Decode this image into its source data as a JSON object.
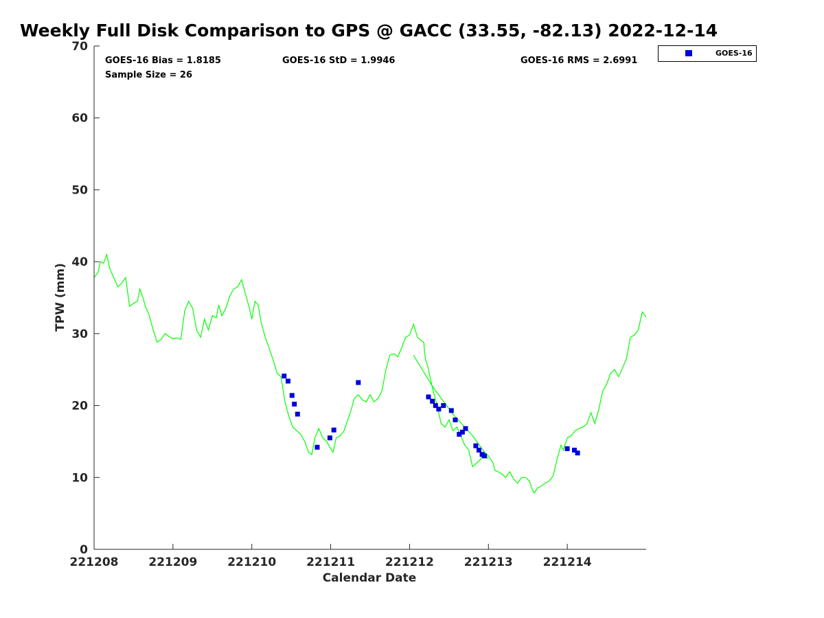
{
  "title": "Weekly Full Disk Comparison to GPS @ GACC (33.55, -82.13) 2022-12-14",
  "stats": {
    "bias": "GOES-16 Bias = 1.8185",
    "std": "GOES-16 StD = 1.9946",
    "rms": "GOES-16 RMS = 2.6991",
    "sample": "Sample Size = 26"
  },
  "legend": {
    "label": "GOES-16",
    "placement": "top-right, outside plot"
  },
  "chart_data": {
    "type": "scatter",
    "title": "Weekly Full Disk Comparison to GPS @ GACC (33.55, -82.13) 2022-12-14",
    "xlabel": "Calendar Date",
    "ylabel": "TPW (mm)",
    "xlim": [
      0,
      7
    ],
    "ylim": [
      0,
      70
    ],
    "x_ticks": [
      0,
      1,
      2,
      3,
      4,
      5,
      6
    ],
    "x_tick_labels": [
      "221208",
      "221209",
      "221210",
      "221211",
      "221212",
      "221213",
      "221214"
    ],
    "y_ticks": [
      0,
      10,
      20,
      30,
      40,
      50,
      60,
      70
    ],
    "y_tick_labels": [
      "0",
      "10",
      "20",
      "30",
      "40",
      "50",
      "60",
      "70"
    ],
    "grid": false,
    "colors": {
      "gps_line": "#00ff00",
      "goes16": "#0000dd"
    },
    "series": [
      {
        "kind": "line",
        "color": "#00ff00",
        "points": [
          [
            0.0,
            37.8
          ],
          [
            0.05,
            38.5
          ],
          [
            0.08,
            40.0
          ],
          [
            0.12,
            39.8
          ],
          [
            0.16,
            41.0
          ],
          [
            0.2,
            39.0
          ],
          [
            0.25,
            37.8
          ],
          [
            0.3,
            36.5
          ],
          [
            0.35,
            37.0
          ],
          [
            0.4,
            37.8
          ],
          [
            0.45,
            33.8
          ],
          [
            0.5,
            34.2
          ],
          [
            0.55,
            34.5
          ],
          [
            0.58,
            36.2
          ],
          [
            0.62,
            35.0
          ],
          [
            0.65,
            33.8
          ],
          [
            0.7,
            32.5
          ],
          [
            0.75,
            30.5
          ],
          [
            0.8,
            28.8
          ],
          [
            0.85,
            29.2
          ],
          [
            0.9,
            30.0
          ],
          [
            0.95,
            29.6
          ],
          [
            1.0,
            29.3
          ],
          [
            1.05,
            29.4
          ],
          [
            1.1,
            29.2
          ],
          [
            1.15,
            33.2
          ],
          [
            1.2,
            34.5
          ],
          [
            1.25,
            33.5
          ],
          [
            1.3,
            30.5
          ],
          [
            1.35,
            29.5
          ],
          [
            1.4,
            32.0
          ],
          [
            1.45,
            30.5
          ],
          [
            1.5,
            32.5
          ],
          [
            1.55,
            32.2
          ],
          [
            1.58,
            34.0
          ],
          [
            1.62,
            32.5
          ],
          [
            1.67,
            33.5
          ],
          [
            1.72,
            35.2
          ],
          [
            1.77,
            36.2
          ],
          [
            1.82,
            36.5
          ],
          [
            1.87,
            37.5
          ],
          [
            1.92,
            35.5
          ],
          [
            1.97,
            33.5
          ],
          [
            2.0,
            32.0
          ],
          [
            2.04,
            34.5
          ],
          [
            2.08,
            34.0
          ],
          [
            2.12,
            31.5
          ],
          [
            2.17,
            29.5
          ],
          [
            2.22,
            28.0
          ],
          [
            2.28,
            26.0
          ],
          [
            2.32,
            24.5
          ],
          [
            2.37,
            24.0
          ],
          [
            2.42,
            20.5
          ],
          [
            2.47,
            18.5
          ],
          [
            2.52,
            17.0
          ],
          [
            2.57,
            16.5
          ],
          [
            2.62,
            16.0
          ],
          [
            2.67,
            15.0
          ],
          [
            2.72,
            13.5
          ],
          [
            2.76,
            13.2
          ],
          [
            2.8,
            15.5
          ],
          [
            2.85,
            16.8
          ],
          [
            2.9,
            15.5
          ],
          [
            2.95,
            15.0
          ],
          [
            3.0,
            14.0
          ],
          [
            3.03,
            13.5
          ],
          [
            3.07,
            15.5
          ],
          [
            3.12,
            15.8
          ],
          [
            3.17,
            16.5
          ],
          [
            3.2,
            17.5
          ],
          [
            3.25,
            19.0
          ],
          [
            3.3,
            21.0
          ],
          [
            3.35,
            21.5
          ],
          [
            3.4,
            20.8
          ],
          [
            3.45,
            20.5
          ],
          [
            3.5,
            21.5
          ],
          [
            3.55,
            20.5
          ],
          [
            3.6,
            21.0
          ],
          [
            3.65,
            22.0
          ],
          [
            3.7,
            25.0
          ],
          [
            3.75,
            27.0
          ],
          [
            3.8,
            27.2
          ],
          [
            3.85,
            26.8
          ],
          [
            3.9,
            28.0
          ],
          [
            3.95,
            29.5
          ],
          [
            4.0,
            29.8
          ],
          [
            4.05,
            31.3
          ],
          [
            4.1,
            29.5
          ],
          [
            4.15,
            29.0
          ],
          [
            4.18,
            28.8
          ],
          [
            4.2,
            26.5
          ],
          [
            4.23,
            25.5
          ],
          [
            4.27,
            23.5
          ],
          [
            4.3,
            22.0
          ],
          [
            4.35,
            20.0
          ],
          [
            4.4,
            17.5
          ],
          [
            4.45,
            17.0
          ],
          [
            4.5,
            18.0
          ],
          [
            4.55,
            16.5
          ],
          [
            4.6,
            17.0
          ],
          [
            4.65,
            15.8
          ],
          [
            4.7,
            14.5
          ],
          [
            4.75,
            13.8
          ],
          [
            4.8,
            11.5
          ],
          [
            4.85,
            12.0
          ],
          [
            4.9,
            12.5
          ],
          [
            4.95,
            13.5
          ],
          [
            5.0,
            13.0
          ],
          [
            5.03,
            12.5
          ],
          [
            5.06,
            12.0
          ],
          [
            5.08,
            11.0
          ],
          [
            5.12,
            10.8
          ],
          [
            5.17,
            10.5
          ],
          [
            5.22,
            10.0
          ],
          [
            5.27,
            10.8
          ],
          [
            5.32,
            9.8
          ],
          [
            5.37,
            9.2
          ],
          [
            5.42,
            10.0
          ],
          [
            5.47,
            10.0
          ],
          [
            5.52,
            9.5
          ],
          [
            5.55,
            8.5
          ],
          [
            5.58,
            7.8
          ],
          [
            5.62,
            8.5
          ],
          [
            5.67,
            8.8
          ],
          [
            5.72,
            9.2
          ],
          [
            5.77,
            9.5
          ],
          [
            5.82,
            10.2
          ],
          [
            5.87,
            12.5
          ],
          [
            5.92,
            14.5
          ],
          [
            5.95,
            13.8
          ],
          [
            6.0,
            15.5
          ],
          [
            6.05,
            15.8
          ],
          [
            6.1,
            16.5
          ],
          [
            6.15,
            16.8
          ],
          [
            6.2,
            17.0
          ],
          [
            6.25,
            17.5
          ],
          [
            6.3,
            19.0
          ],
          [
            6.35,
            17.5
          ],
          [
            6.4,
            19.5
          ],
          [
            6.45,
            22.0
          ],
          [
            6.5,
            23.0
          ],
          [
            6.55,
            24.5
          ],
          [
            6.6,
            25.0
          ],
          [
            6.65,
            24.0
          ],
          [
            6.7,
            25.2
          ],
          [
            6.75,
            26.5
          ],
          [
            6.8,
            29.5
          ],
          [
            6.85,
            29.8
          ],
          [
            6.9,
            30.5
          ],
          [
            6.95,
            33.0
          ],
          [
            7.0,
            32.3
          ]
        ]
      },
      {
        "kind": "line",
        "color": "#00ff00",
        "points": [
          [
            4.05,
            27.0
          ],
          [
            4.3,
            22.5
          ],
          [
            4.55,
            18.8
          ],
          [
            4.8,
            15.8
          ],
          [
            4.95,
            13.5
          ],
          [
            5.0,
            12.5
          ]
        ]
      },
      {
        "kind": "scatter",
        "name": "GOES-16",
        "color": "#0000dd",
        "marker": "square",
        "points": [
          [
            2.41,
            24.1
          ],
          [
            2.46,
            23.4
          ],
          [
            2.51,
            21.4
          ],
          [
            2.54,
            20.2
          ],
          [
            2.58,
            18.8
          ],
          [
            2.83,
            14.2
          ],
          [
            2.99,
            15.5
          ],
          [
            3.04,
            16.6
          ],
          [
            3.35,
            23.2
          ],
          [
            4.24,
            21.2
          ],
          [
            4.29,
            20.6
          ],
          [
            4.33,
            20.0
          ],
          [
            4.37,
            19.5
          ],
          [
            4.43,
            20.0
          ],
          [
            4.53,
            19.3
          ],
          [
            4.58,
            18.0
          ],
          [
            4.63,
            16.0
          ],
          [
            4.67,
            16.3
          ],
          [
            4.71,
            16.8
          ],
          [
            4.84,
            14.4
          ],
          [
            4.88,
            13.8
          ],
          [
            4.92,
            13.2
          ],
          [
            4.95,
            13.0
          ],
          [
            6.0,
            14.0
          ],
          [
            6.09,
            13.8
          ],
          [
            6.13,
            13.4
          ]
        ]
      }
    ]
  }
}
